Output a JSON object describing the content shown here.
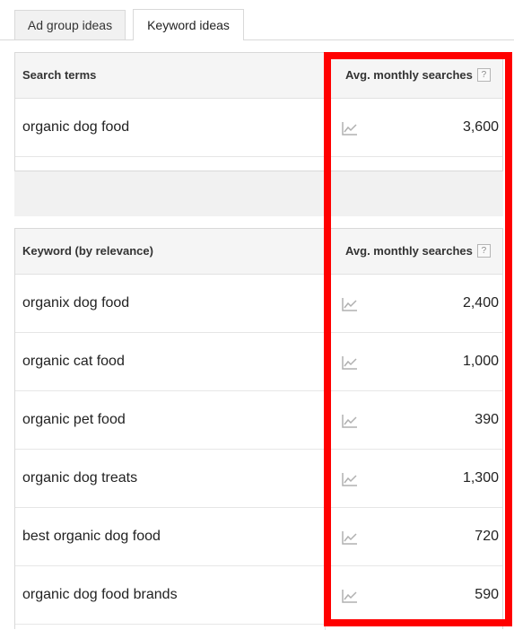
{
  "tabs": [
    {
      "label": "Ad group ideas",
      "active": false
    },
    {
      "label": "Keyword ideas",
      "active": true
    }
  ],
  "search_terms_table": {
    "header": {
      "term_label": "Search terms",
      "searches_label": "Avg. monthly searches",
      "help_glyph": "?"
    },
    "rows": [
      {
        "keyword": "organic dog food",
        "avg_monthly_searches": "3,600"
      }
    ]
  },
  "keyword_ideas_table": {
    "header": {
      "term_label": "Keyword (by relevance)",
      "searches_label": "Avg. monthly searches",
      "help_glyph": "?"
    },
    "rows": [
      {
        "keyword": "organix dog food",
        "avg_monthly_searches": "2,400"
      },
      {
        "keyword": "organic cat food",
        "avg_monthly_searches": "1,000"
      },
      {
        "keyword": "organic pet food",
        "avg_monthly_searches": "390"
      },
      {
        "keyword": "organic dog treats",
        "avg_monthly_searches": "1,300"
      },
      {
        "keyword": "best organic dog food",
        "avg_monthly_searches": "720"
      },
      {
        "keyword": "organic dog food brands",
        "avg_monthly_searches": "590"
      }
    ]
  },
  "icons": {
    "trend": "line-chart-icon",
    "help": "help-icon"
  },
  "colors": {
    "highlight": "#ff0000",
    "header_bg": "#f5f5f5",
    "border": "#d9d9d9",
    "trend_icon": "#b0b0b0"
  }
}
